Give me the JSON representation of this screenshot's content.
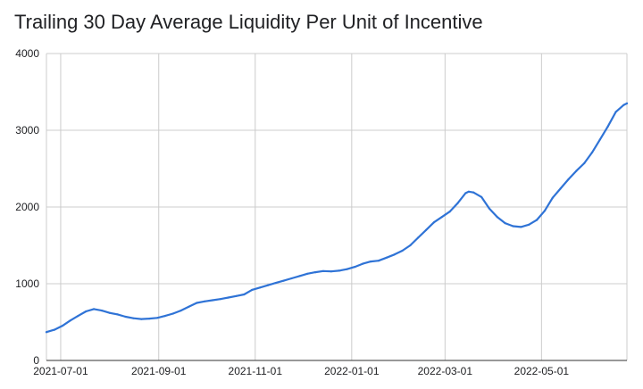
{
  "chart_data": {
    "type": "line",
    "title": "Trailing 30 Day Average Liquidity Per Unit of Incentive",
    "xlabel": "",
    "ylabel": "",
    "ylim": [
      0,
      4000
    ],
    "xlim": [
      "2021-06-22",
      "2022-06-24"
    ],
    "y_ticks": [
      0,
      1000,
      2000,
      3000,
      4000
    ],
    "x_ticks": [
      "2021-07-01",
      "2021-09-01",
      "2021-11-01",
      "2022-01-01",
      "2022-03-01",
      "2022-05-01"
    ],
    "grid": true,
    "legend": "none",
    "line_color": "#2f73d6",
    "series": [
      {
        "x": [
          "2021-06-22",
          "2021-06-27",
          "2021-07-02",
          "2021-07-07",
          "2021-07-12",
          "2021-07-17",
          "2021-07-22",
          "2021-07-27",
          "2021-08-01",
          "2021-08-06",
          "2021-08-11",
          "2021-08-16",
          "2021-08-21",
          "2021-08-26",
          "2021-08-31",
          "2021-09-05",
          "2021-09-10",
          "2021-09-15",
          "2021-09-20",
          "2021-09-25",
          "2021-09-30",
          "2021-10-05",
          "2021-10-10",
          "2021-10-15",
          "2021-10-20",
          "2021-10-25",
          "2021-10-30",
          "2021-11-04",
          "2021-11-09",
          "2021-11-14",
          "2021-11-19",
          "2021-11-24",
          "2021-11-29",
          "2021-12-04",
          "2021-12-09",
          "2021-12-14",
          "2021-12-19",
          "2021-12-24",
          "2021-12-29",
          "2022-01-03",
          "2022-01-08",
          "2022-01-13",
          "2022-01-18",
          "2022-01-23",
          "2022-01-28",
          "2022-02-02",
          "2022-02-07",
          "2022-02-12",
          "2022-02-17",
          "2022-02-22",
          "2022-02-27",
          "2022-03-04",
          "2022-03-09",
          "2022-03-14",
          "2022-03-16",
          "2022-03-19",
          "2022-03-24",
          "2022-03-29",
          "2022-04-03",
          "2022-04-08",
          "2022-04-13",
          "2022-04-18",
          "2022-04-23",
          "2022-04-28",
          "2022-05-03",
          "2022-05-08",
          "2022-05-13",
          "2022-05-18",
          "2022-05-23",
          "2022-05-28",
          "2022-06-02",
          "2022-06-07",
          "2022-06-12",
          "2022-06-17",
          "2022-06-22",
          "2022-06-24"
        ],
        "y": [
          370,
          400,
          450,
          520,
          580,
          640,
          670,
          650,
          620,
          600,
          570,
          550,
          540,
          545,
          555,
          580,
          610,
          650,
          700,
          750,
          770,
          785,
          800,
          820,
          840,
          860,
          920,
          950,
          980,
          1010,
          1040,
          1070,
          1100,
          1130,
          1150,
          1165,
          1160,
          1170,
          1190,
          1220,
          1260,
          1290,
          1300,
          1340,
          1380,
          1430,
          1500,
          1600,
          1700,
          1800,
          1870,
          1940,
          2050,
          2180,
          2200,
          2190,
          2130,
          1980,
          1870,
          1790,
          1750,
          1740,
          1770,
          1830,
          1950,
          2120,
          2240,
          2360,
          2470,
          2570,
          2710,
          2880,
          3050,
          3240,
          3330,
          3350
        ]
      }
    ]
  }
}
